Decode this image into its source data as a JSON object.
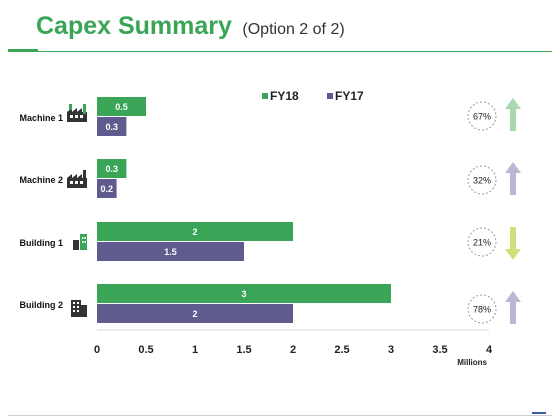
{
  "slide": {
    "title": "Capex Summary",
    "subtitle": "(Option 2 of 2)"
  },
  "colors": {
    "accent": "#3aa457",
    "fy18": "#3aa457",
    "fy17": "#5f5b8e",
    "arrow_up_green": "#a8d8b0",
    "arrow_up_purple": "#b8b8d4",
    "arrow_down_yellow": "#cfe07a"
  },
  "chart_data": {
    "type": "bar",
    "orientation": "horizontal",
    "categories": [
      "Machine 1",
      "Machine 2",
      "Building 1",
      "Building 2"
    ],
    "category_icons": [
      "factory-icon",
      "factory-icon",
      "building-icon",
      "office-building-icon"
    ],
    "series": [
      {
        "name": "FY18",
        "values": [
          0.5,
          0.3,
          2,
          3
        ],
        "labels": [
          "0.5",
          "0.3",
          "2",
          "3"
        ]
      },
      {
        "name": "FY17",
        "values": [
          0.3,
          0.2,
          1.5,
          2
        ],
        "labels": [
          "0.3",
          "0.2",
          "1.5",
          "2"
        ]
      }
    ],
    "xlim": [
      0,
      4
    ],
    "x_ticks": [
      "0",
      "0.5",
      "1",
      "1.5",
      "2",
      "2.5",
      "3",
      "3.5",
      "4"
    ],
    "xlabel": "Millions",
    "legend_position": "top",
    "grid": false,
    "indicators": [
      {
        "label": "67%",
        "direction": "up",
        "color": "#a8d8b0"
      },
      {
        "label": "32%",
        "direction": "up",
        "color": "#b8b8d4"
      },
      {
        "label": "21%",
        "direction": "down",
        "color": "#cfe07a"
      },
      {
        "label": "78%",
        "direction": "up",
        "color": "#b8b8d4"
      }
    ]
  }
}
